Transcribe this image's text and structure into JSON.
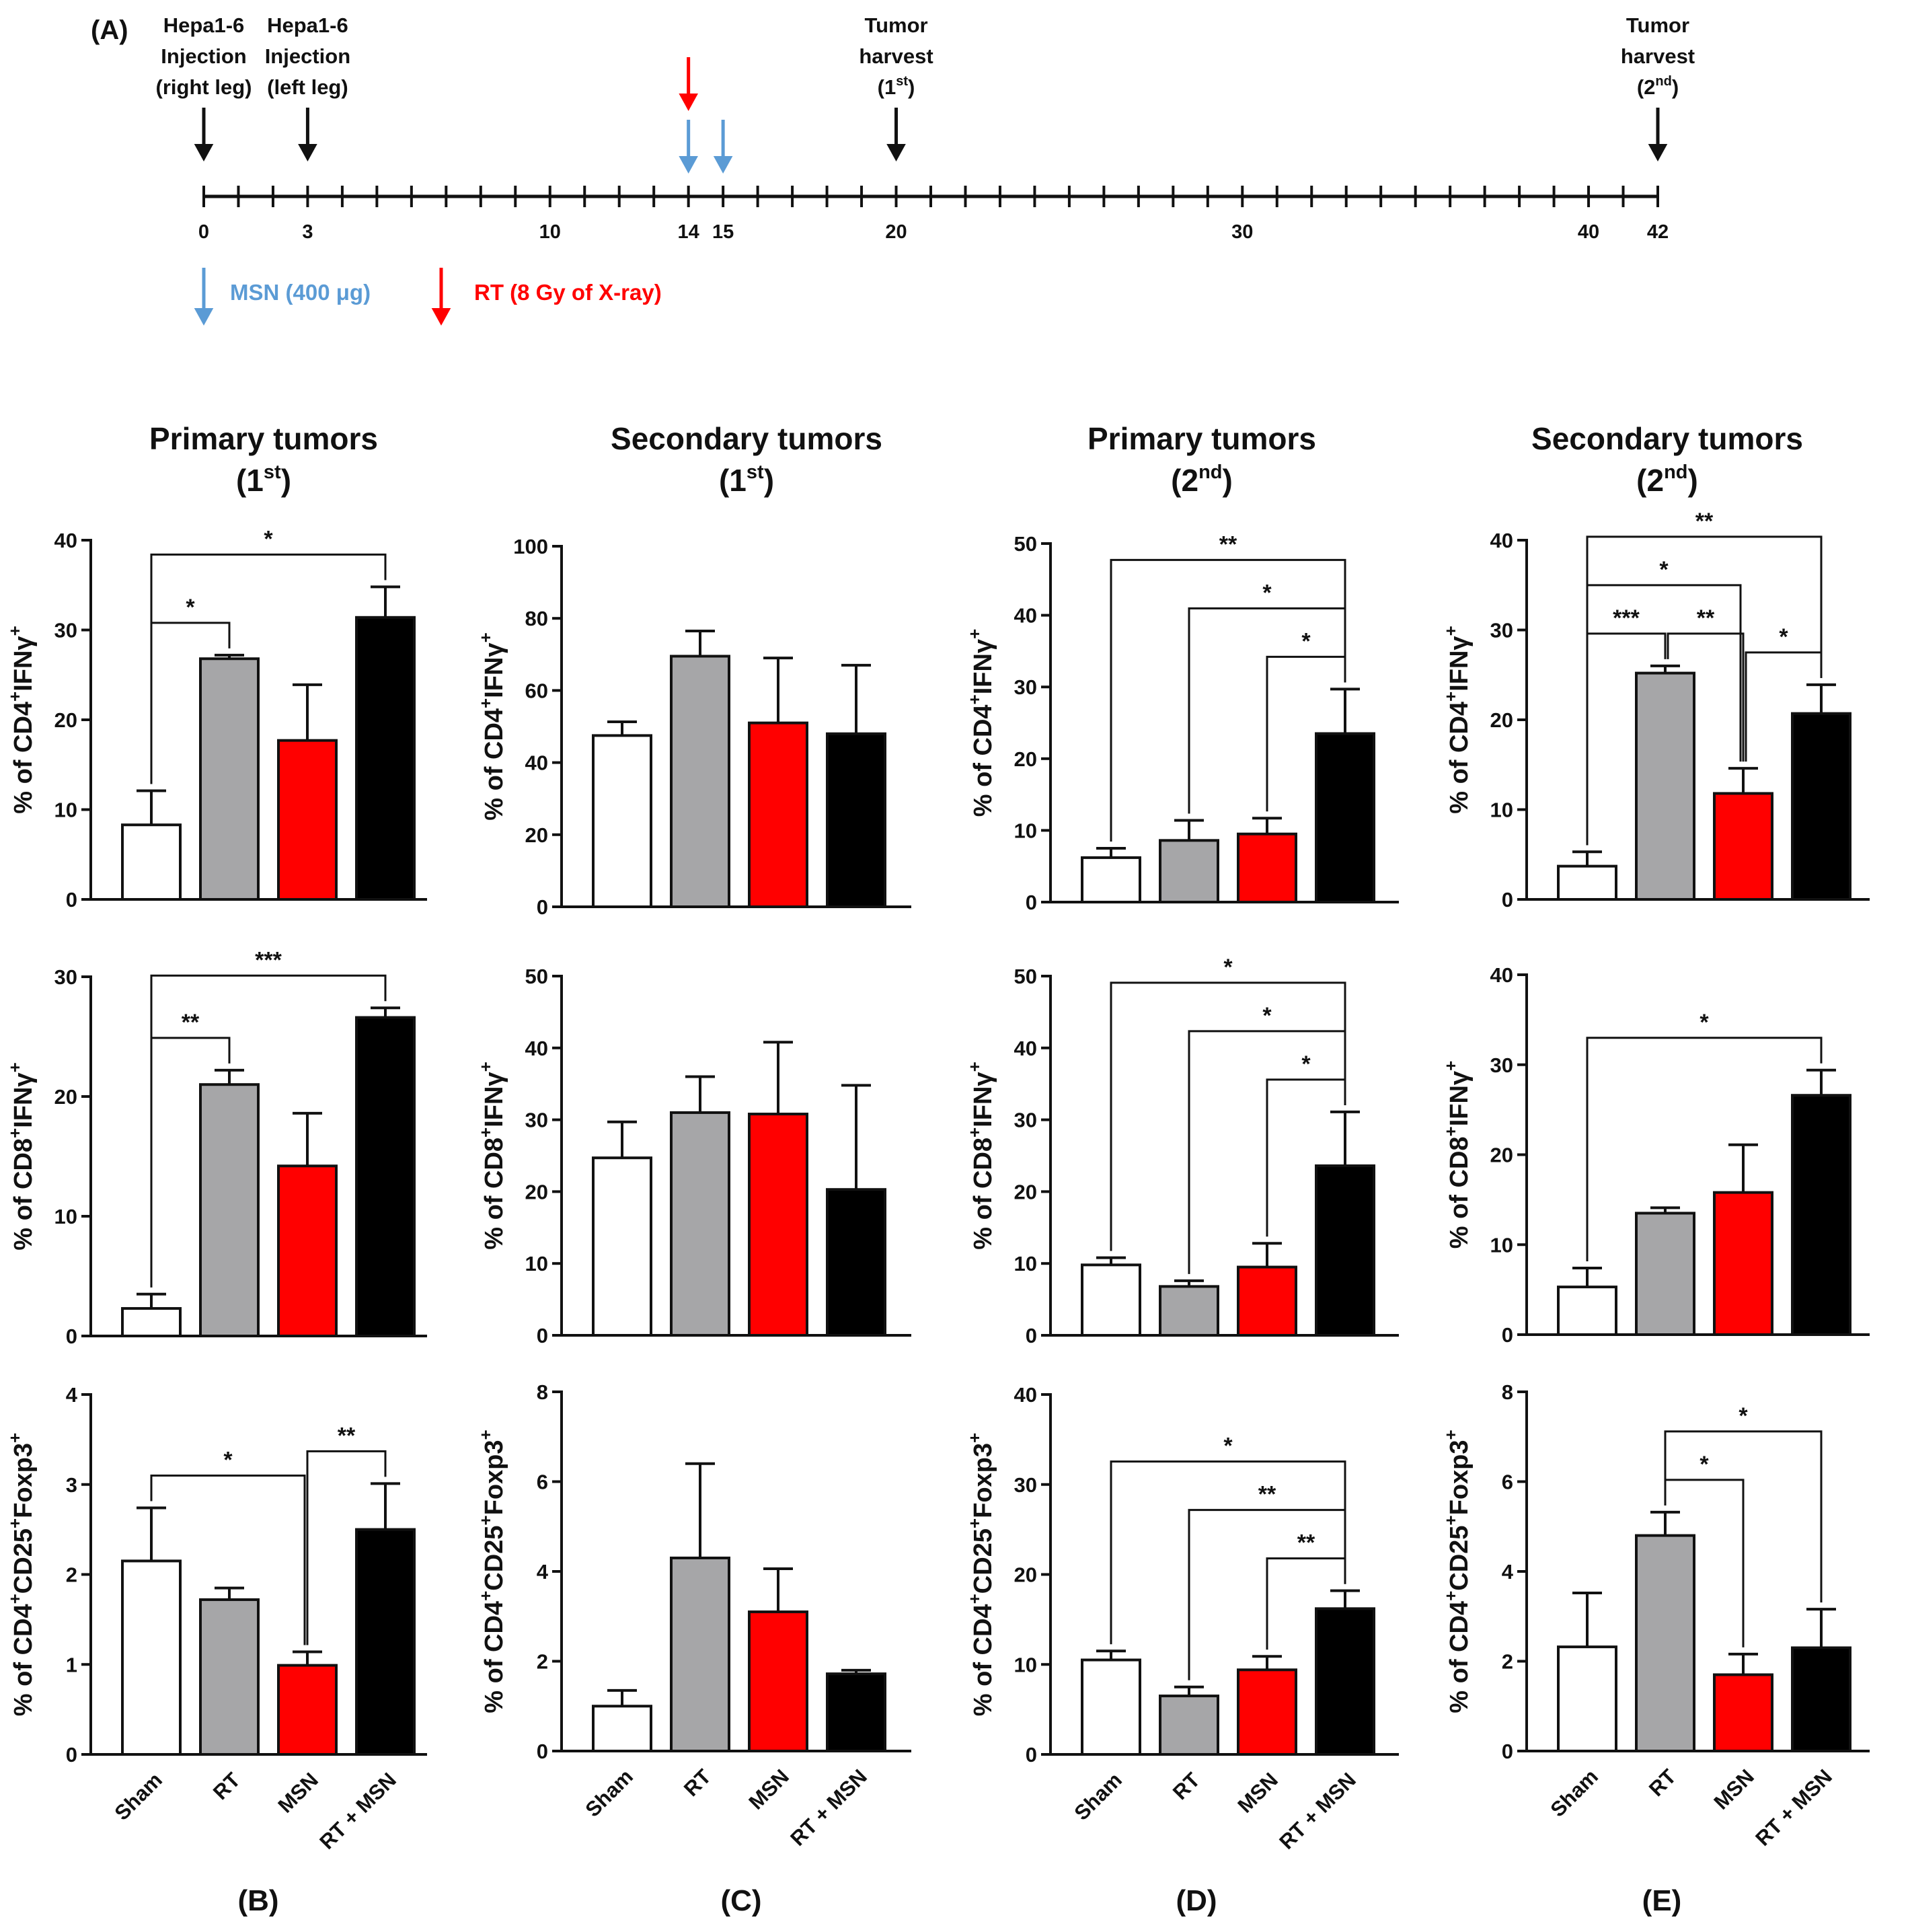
{
  "timeline": {
    "panel_label": "(A)",
    "ticks_labeled": [
      "0",
      "3",
      "10",
      "14",
      "15",
      "20",
      "30",
      "40",
      "42"
    ],
    "events": [
      {
        "lines": [
          "Hepa1-6",
          "Injection",
          "(right leg)"
        ],
        "day": 0
      },
      {
        "lines": [
          "Hepa1-6",
          "Injection",
          "(left leg)"
        ],
        "day": 3
      },
      {
        "lines": [
          "Tumor",
          "harvest",
          "(1st)"
        ],
        "day": 20
      },
      {
        "lines": [
          "Tumor",
          "harvest",
          "(2nd)"
        ],
        "day": 42
      }
    ],
    "rt_days": [
      14
    ],
    "msn_days": [
      14,
      15
    ],
    "legend": {
      "msn": "MSN (400 μg)",
      "rt": "RT (8 Gy of X-ray)"
    },
    "max_day": 42
  },
  "colors": {
    "sham": "#ffffff",
    "rt": "#a6a6a8",
    "msn": "#ff0000",
    "rtmsn": "#000000",
    "msn_arrow": "#5b9bd5",
    "rt_arrow": "#ff0000"
  },
  "categories": [
    "Sham",
    "RT",
    "MSN",
    "RT + MSN"
  ],
  "columns": [
    {
      "title": "Primary tumors",
      "sub": "1st",
      "label": "(B)"
    },
    {
      "title": "Secondary tumors",
      "sub": "1st",
      "label": "(C)"
    },
    {
      "title": "Primary tumors",
      "sub": "2nd",
      "label": "(D)"
    },
    {
      "title": "Secondary tumors",
      "sub": "2nd",
      "label": "(E)"
    }
  ],
  "row_ylabels": [
    "% of CD4+IFNγ+",
    "% of CD8+IFNγ+",
    "% of CD4+CD25+Foxp3+"
  ],
  "chart_data": [
    {
      "type": "bar",
      "panel": "B",
      "row": 0,
      "ylabel": "% of CD4+IFNγ+",
      "ylim": [
        0,
        40
      ],
      "yticks": [
        0,
        10,
        20,
        30,
        40
      ],
      "categories": [
        "Sham",
        "RT",
        "MSN",
        "RT + MSN"
      ],
      "values": [
        8.3,
        26.8,
        17.7,
        31.4
      ],
      "errors": [
        3.8,
        0.4,
        6.2,
        3.4
      ],
      "sig": [
        {
          "a": 0,
          "b": 1,
          "label": "*"
        },
        {
          "a": 0,
          "b": 3,
          "label": "*"
        }
      ]
    },
    {
      "type": "bar",
      "panel": "C",
      "row": 0,
      "ylabel": "% of CD4+IFNγ+",
      "ylim": [
        0,
        100
      ],
      "yticks": [
        0,
        20,
        40,
        60,
        80,
        100
      ],
      "categories": [
        "Sham",
        "RT",
        "MSN",
        "RT + MSN"
      ],
      "values": [
        47.5,
        69.5,
        51,
        48
      ],
      "errors": [
        3.8,
        7,
        18,
        19
      ],
      "sig": []
    },
    {
      "type": "bar",
      "panel": "D",
      "row": 0,
      "ylabel": "% of CD4+IFNγ+",
      "ylim": [
        0,
        50
      ],
      "yticks": [
        0,
        10,
        20,
        30,
        40,
        50
      ],
      "categories": [
        "Sham",
        "RT",
        "MSN",
        "RT + MSN"
      ],
      "values": [
        6.2,
        8.6,
        9.5,
        23.5
      ],
      "errors": [
        1.3,
        2.8,
        2.2,
        6.2
      ],
      "sig": [
        {
          "a": 0,
          "b": 3,
          "label": "**"
        },
        {
          "a": 1,
          "b": 3,
          "label": "*"
        },
        {
          "a": 2,
          "b": 3,
          "label": "*"
        }
      ]
    },
    {
      "type": "bar",
      "panel": "E",
      "row": 0,
      "ylabel": "% of CD4+IFNγ+",
      "ylim": [
        0,
        40
      ],
      "yticks": [
        0,
        10,
        20,
        30,
        40
      ],
      "categories": [
        "Sham",
        "RT",
        "MSN",
        "RT + MSN"
      ],
      "values": [
        3.7,
        25.2,
        11.8,
        20.7
      ],
      "errors": [
        1.6,
        0.8,
        2.8,
        3.2
      ],
      "sig": [
        {
          "a": 0,
          "b": 1,
          "label": "***"
        },
        {
          "a": 1,
          "b": 2,
          "label": "**"
        },
        {
          "a": 2,
          "b": 3,
          "label": "*"
        },
        {
          "a": 0,
          "b": 2,
          "label": "*"
        },
        {
          "a": 0,
          "b": 3,
          "label": "**"
        }
      ]
    },
    {
      "type": "bar",
      "panel": "B",
      "row": 1,
      "ylabel": "% of CD8+IFNγ+",
      "ylim": [
        0,
        30
      ],
      "yticks": [
        0,
        10,
        20,
        30
      ],
      "categories": [
        "Sham",
        "RT",
        "MSN",
        "RT + MSN"
      ],
      "values": [
        2.3,
        21,
        14.2,
        26.6
      ],
      "errors": [
        1.2,
        1.2,
        4.4,
        0.8
      ],
      "sig": [
        {
          "a": 0,
          "b": 1,
          "label": "**"
        },
        {
          "a": 0,
          "b": 3,
          "label": "***"
        }
      ]
    },
    {
      "type": "bar",
      "panel": "C",
      "row": 1,
      "ylabel": "% of CD8+IFNγ+",
      "ylim": [
        0,
        50
      ],
      "yticks": [
        0,
        10,
        20,
        30,
        40,
        50
      ],
      "categories": [
        "Sham",
        "RT",
        "MSN",
        "RT + MSN"
      ],
      "values": [
        24.7,
        31,
        30.8,
        20.3
      ],
      "errors": [
        5,
        5,
        10,
        14.5
      ],
      "sig": []
    },
    {
      "type": "bar",
      "panel": "D",
      "row": 1,
      "ylabel": "% of CD8+IFNγ+",
      "ylim": [
        0,
        50
      ],
      "yticks": [
        0,
        10,
        20,
        30,
        40,
        50
      ],
      "categories": [
        "Sham",
        "RT",
        "MSN",
        "RT + MSN"
      ],
      "values": [
        9.8,
        6.8,
        9.5,
        23.6
      ],
      "errors": [
        1,
        0.8,
        3.3,
        7.5
      ],
      "sig": [
        {
          "a": 0,
          "b": 3,
          "label": "*"
        },
        {
          "a": 1,
          "b": 3,
          "label": "*"
        },
        {
          "a": 2,
          "b": 3,
          "label": "*"
        }
      ]
    },
    {
      "type": "bar",
      "panel": "E",
      "row": 1,
      "ylabel": "% of CD8+IFNγ+",
      "ylim": [
        0,
        40
      ],
      "yticks": [
        0,
        10,
        20,
        30,
        40
      ],
      "categories": [
        "Sham",
        "RT",
        "MSN",
        "RT + MSN"
      ],
      "values": [
        5.3,
        13.5,
        15.8,
        26.6
      ],
      "errors": [
        2.1,
        0.6,
        5.3,
        2.8
      ],
      "sig": [
        {
          "a": 0,
          "b": 3,
          "label": "*"
        }
      ]
    },
    {
      "type": "bar",
      "panel": "B",
      "row": 2,
      "ylabel": "% of CD4+CD25+Foxp3+",
      "ylim": [
        0,
        4
      ],
      "yticks": [
        0,
        1,
        2,
        3,
        4
      ],
      "categories": [
        "Sham",
        "RT",
        "MSN",
        "RT + MSN"
      ],
      "values": [
        2.15,
        1.72,
        0.99,
        2.5
      ],
      "errors": [
        0.59,
        0.13,
        0.15,
        0.51
      ],
      "sig": [
        {
          "a": 0,
          "b": 2,
          "label": "*"
        },
        {
          "a": 2,
          "b": 3,
          "label": "**"
        }
      ]
    },
    {
      "type": "bar",
      "panel": "C",
      "row": 2,
      "ylabel": "% of CD4+CD25+Foxp3+",
      "ylim": [
        0,
        8
      ],
      "yticks": [
        0,
        2,
        4,
        6,
        8
      ],
      "categories": [
        "Sham",
        "RT",
        "MSN",
        "RT + MSN"
      ],
      "values": [
        1,
        4.3,
        3.1,
        1.72
      ],
      "errors": [
        0.35,
        2.1,
        0.96,
        0.08
      ],
      "sig": []
    },
    {
      "type": "bar",
      "panel": "D",
      "row": 2,
      "ylabel": "% of CD4+CD25+Foxp3+",
      "ylim": [
        0,
        40
      ],
      "yticks": [
        0,
        10,
        20,
        30,
        40
      ],
      "categories": [
        "Sham",
        "RT",
        "MSN",
        "RT + MSN"
      ],
      "values": [
        10.5,
        6.5,
        9.4,
        16.2
      ],
      "errors": [
        1,
        1,
        1.5,
        2
      ],
      "sig": [
        {
          "a": 0,
          "b": 3,
          "label": "*"
        },
        {
          "a": 1,
          "b": 3,
          "label": "**"
        },
        {
          "a": 2,
          "b": 3,
          "label": "**"
        }
      ]
    },
    {
      "type": "bar",
      "panel": "E",
      "row": 2,
      "ylabel": "% of CD4+CD25+Foxp3+",
      "ylim": [
        0,
        8
      ],
      "yticks": [
        0,
        2,
        4,
        6,
        8
      ],
      "categories": [
        "Sham",
        "RT",
        "MSN",
        "RT + MSN"
      ],
      "values": [
        2.32,
        4.8,
        1.7,
        2.3
      ],
      "errors": [
        1.2,
        0.52,
        0.46,
        0.86
      ],
      "sig": [
        {
          "a": 1,
          "b": 2,
          "label": "*"
        },
        {
          "a": 1,
          "b": 3,
          "label": "*"
        }
      ]
    }
  ]
}
